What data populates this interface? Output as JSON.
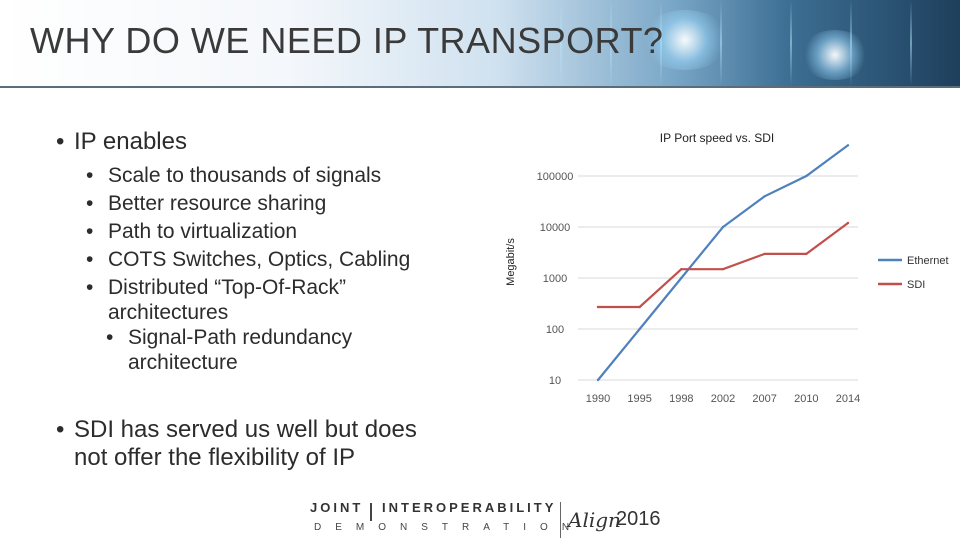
{
  "slide": {
    "title": "WHY DO WE NEED IP TRANSPORT?"
  },
  "bullets": {
    "main1": "IP enables",
    "sub": [
      "Scale to thousands of signals",
      "Better resource sharing",
      "Path to virtualization",
      "COTS Switches, Optics, Cabling",
      "Distributed “Top-Of-Rack”",
      "architectures"
    ],
    "sub2": [
      "Signal-Path redundancy",
      "architecture"
    ],
    "main2_line1": "SDI has served us well but does",
    "main2_line2": "not offer the flexibility of IP"
  },
  "footer": {
    "joint": "JOINT",
    "interop": "INTEROPERABILITY",
    "demo": "DEMONSTRATION",
    "align": "Align",
    "year": "2016"
  },
  "chart_data": {
    "type": "line",
    "title": "IP Port speed vs. SDI",
    "ylabel": "Megabit/s",
    "xlabel": "",
    "yscale": "log",
    "ylim": [
      10,
      100000
    ],
    "yticks": [
      "10",
      "100",
      "1000",
      "10000",
      "100000"
    ],
    "categories": [
      "1990",
      "1995",
      "1998",
      "2002",
      "2007",
      "2010",
      "2014"
    ],
    "legend_position": "right",
    "series": [
      {
        "name": "Ethernet",
        "color": "#4f81bd",
        "values": [
          10,
          100,
          1000,
          10000,
          40000,
          100000,
          400000
        ]
      },
      {
        "name": "SDI",
        "color": "#c0504d",
        "values": [
          270,
          270,
          1485,
          1485,
          2970,
          2970,
          12000
        ]
      }
    ]
  }
}
